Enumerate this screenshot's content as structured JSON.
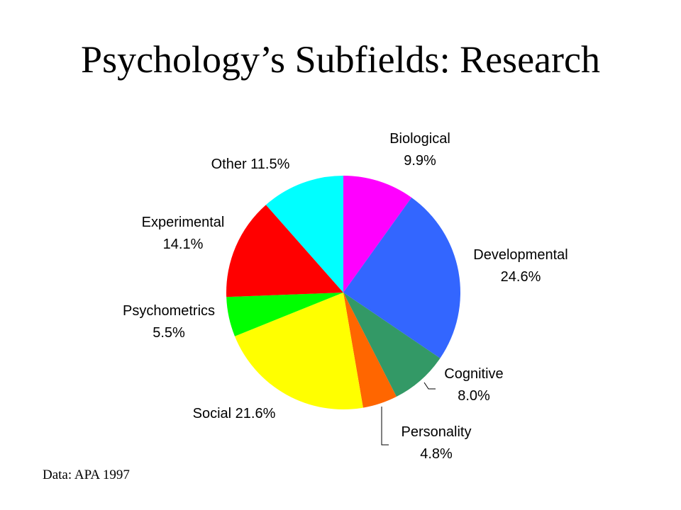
{
  "slide": {
    "title": "Psychology’s Subfields: Research",
    "source": "Data: APA 1997"
  },
  "chart_data": {
    "type": "pie",
    "start_angle_deg": 0,
    "direction": "clockwise",
    "slices": [
      {
        "name": "Biological",
        "value": 9.9,
        "label_lines": [
          "Biological",
          "9.9%"
        ],
        "color": "#FF00FF"
      },
      {
        "name": "Developmental",
        "value": 24.6,
        "label_lines": [
          "Developmental",
          "24.6%"
        ],
        "color": "#3366FF"
      },
      {
        "name": "Cognitive",
        "value": 8.0,
        "label_lines": [
          "Cognitive",
          "8.0%"
        ],
        "color": "#339966"
      },
      {
        "name": "Personality",
        "value": 4.8,
        "label_lines": [
          "Personality",
          "4.8%"
        ],
        "color": "#FF6600"
      },
      {
        "name": "Social",
        "value": 21.6,
        "label_lines": [
          "Social 21.6%"
        ],
        "color": "#FFFF00"
      },
      {
        "name": "Psychometrics",
        "value": 5.5,
        "label_lines": [
          "Psychometrics",
          "5.5%"
        ],
        "color": "#00FF00"
      },
      {
        "name": "Experimental",
        "value": 14.1,
        "label_lines": [
          "Experimental",
          "14.1%"
        ],
        "color": "#FF0000"
      },
      {
        "name": "Other",
        "value": 11.5,
        "label_lines": [
          "Other 11.5%"
        ],
        "color": "#00FFFF"
      }
    ]
  }
}
